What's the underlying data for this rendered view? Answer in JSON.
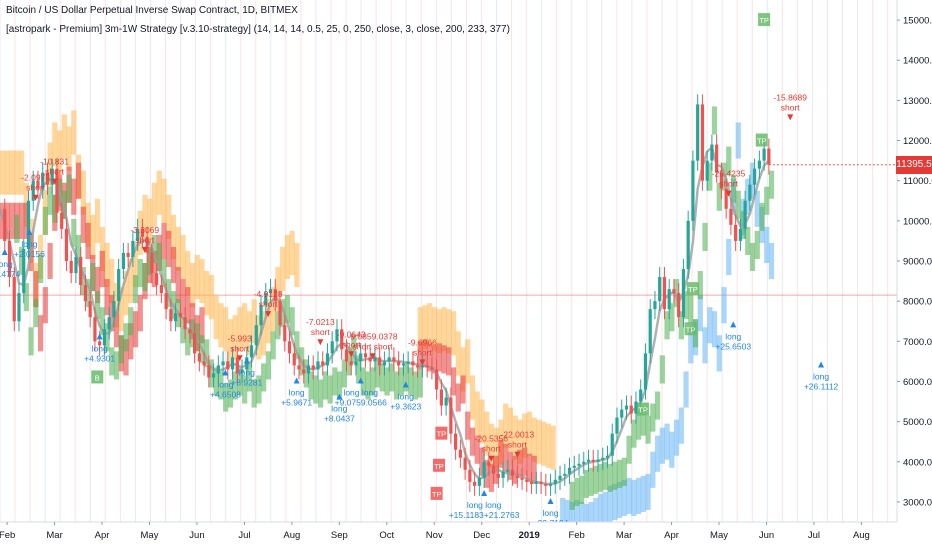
{
  "chart_data": {
    "type": "line",
    "title": "Bitcoin / US Dollar Perpetual Inverse Swap Contract, 1D, BITMEX",
    "subtitle": "[astropark - Premium] 3m-1W Strategy [v.3.10-strategy] (14, 14, 14, 0.5, 25, 0, 250, close, 3, close, 200, 233, 377)",
    "last_price_label": "11395.5",
    "last_price": 11395.5,
    "ref_line": 8150,
    "ylim": [
      2500,
      15500
    ],
    "y_ticks": [
      "3000.0",
      "4000.0",
      "5000.0",
      "6000.0",
      "7000.0",
      "8000.0",
      "9000.0",
      "10000.0",
      "11000.0",
      "12000.0",
      "13000.0",
      "14000.0",
      "15000.0"
    ],
    "x_ticks": [
      "Feb",
      "Mar",
      "Apr",
      "May",
      "Jun",
      "Jul",
      "Aug",
      "Sep",
      "Oct",
      "Nov",
      "Dec",
      "2019",
      "Feb",
      "Mar",
      "Apr",
      "May",
      "Jun",
      "Jul",
      "Aug"
    ],
    "x_months": [
      0,
      1,
      2,
      3,
      4,
      5,
      6,
      7,
      8,
      9,
      10,
      11,
      12,
      13,
      14,
      15,
      16,
      17,
      18
    ],
    "xlim": [
      0,
      18.9
    ],
    "colors": {
      "price_up": "#26a69a",
      "price_down": "#ef5350",
      "bull_band": "#4caf50",
      "bear_band": "#e53935",
      "orange_band": "#ffb74d",
      "blue_band": "#64b5f6",
      "ma_line": "#9e9e9e",
      "short_marker": "#e53935",
      "long_marker": "#1e88e5",
      "tp_box": "#66bb6a",
      "tp_box_red": "#ef5350",
      "ref_line": "#ef5350"
    },
    "series": [
      {
        "values": [
          [
            0,
            10300
          ],
          [
            0.1,
            9500
          ],
          [
            0.2,
            8600
          ],
          [
            0.3,
            7500
          ],
          [
            0.4,
            8200
          ],
          [
            0.5,
            9300
          ],
          [
            0.6,
            10500
          ],
          [
            0.7,
            11000
          ],
          [
            0.8,
            10800
          ],
          [
            0.9,
            11200
          ],
          [
            1.0,
            10900
          ],
          [
            1.1,
            11300
          ],
          [
            1.2,
            10200
          ],
          [
            1.3,
            9800
          ],
          [
            1.4,
            9000
          ],
          [
            1.5,
            8700
          ],
          [
            1.6,
            9100
          ],
          [
            1.7,
            8400
          ],
          [
            1.8,
            8000
          ],
          [
            1.9,
            7600
          ],
          [
            2.0,
            7000
          ],
          [
            2.1,
            6900
          ],
          [
            2.2,
            7300
          ],
          [
            2.3,
            7600
          ],
          [
            2.4,
            8000
          ],
          [
            2.5,
            8800
          ],
          [
            2.6,
            9200
          ],
          [
            2.7,
            9100
          ],
          [
            2.8,
            9500
          ],
          [
            2.9,
            9800
          ],
          [
            3.0,
            9600
          ],
          [
            3.1,
            9200
          ],
          [
            3.2,
            8700
          ],
          [
            3.3,
            8400
          ],
          [
            3.4,
            8200
          ],
          [
            3.5,
            7800
          ],
          [
            3.6,
            7500
          ],
          [
            3.7,
            7700
          ],
          [
            3.8,
            7600
          ],
          [
            3.9,
            7300
          ],
          [
            4.0,
            7200
          ],
          [
            4.1,
            6700
          ],
          [
            4.2,
            6500
          ],
          [
            4.3,
            6400
          ],
          [
            4.4,
            6100
          ],
          [
            4.5,
            6200
          ],
          [
            4.6,
            6400
          ],
          [
            4.7,
            6500
          ],
          [
            4.8,
            6300
          ],
          [
            4.9,
            6600
          ],
          [
            5.0,
            6200
          ],
          [
            5.1,
            6300
          ],
          [
            5.2,
            6600
          ],
          [
            5.3,
            6900
          ],
          [
            5.4,
            7400
          ],
          [
            5.5,
            7900
          ],
          [
            5.6,
            8200
          ],
          [
            5.7,
            8300
          ],
          [
            5.8,
            8000
          ],
          [
            5.9,
            7400
          ],
          [
            6.0,
            7000
          ],
          [
            6.1,
            6700
          ],
          [
            6.2,
            6400
          ],
          [
            6.3,
            6300
          ],
          [
            6.4,
            6200
          ],
          [
            6.5,
            6400
          ],
          [
            6.6,
            6300
          ],
          [
            6.7,
            6500
          ],
          [
            6.8,
            6400
          ],
          [
            6.9,
            6700
          ],
          [
            7.0,
            7000
          ],
          [
            7.1,
            7300
          ],
          [
            7.2,
            6800
          ],
          [
            7.3,
            6500
          ],
          [
            7.4,
            6400
          ],
          [
            7.5,
            6500
          ],
          [
            7.6,
            6700
          ],
          [
            7.7,
            6600
          ],
          [
            7.8,
            6500
          ],
          [
            7.9,
            6600
          ],
          [
            8.0,
            6400
          ],
          [
            8.1,
            6500
          ],
          [
            8.2,
            6600
          ],
          [
            8.3,
            6500
          ],
          [
            8.4,
            6400
          ],
          [
            8.5,
            6450
          ],
          [
            8.6,
            6500
          ],
          [
            8.7,
            6400
          ],
          [
            8.8,
            6350
          ],
          [
            8.9,
            6400
          ],
          [
            9.0,
            6350
          ],
          [
            9.1,
            6300
          ],
          [
            9.2,
            5800
          ],
          [
            9.3,
            5400
          ],
          [
            9.4,
            5600
          ],
          [
            9.5,
            4700
          ],
          [
            9.6,
            4300
          ],
          [
            9.7,
            4100
          ],
          [
            9.8,
            3800
          ],
          [
            9.9,
            3500
          ],
          [
            10.0,
            3400
          ],
          [
            10.1,
            3600
          ],
          [
            10.2,
            4000
          ],
          [
            10.3,
            3900
          ],
          [
            10.4,
            3700
          ],
          [
            10.5,
            3600
          ],
          [
            10.6,
            3750
          ],
          [
            10.7,
            3800
          ],
          [
            10.8,
            3650
          ],
          [
            10.9,
            3600
          ],
          [
            11.0,
            3550
          ],
          [
            11.1,
            3500
          ],
          [
            11.2,
            3450
          ],
          [
            11.3,
            3500
          ],
          [
            11.4,
            3450
          ],
          [
            11.5,
            3400
          ],
          [
            11.6,
            3450
          ],
          [
            11.7,
            3550
          ],
          [
            11.8,
            3650
          ],
          [
            11.9,
            3700
          ],
          [
            12.0,
            3850
          ],
          [
            12.1,
            3900
          ],
          [
            12.2,
            3950
          ],
          [
            12.3,
            4000
          ],
          [
            12.4,
            4050
          ],
          [
            12.5,
            4000
          ],
          [
            12.6,
            4050
          ],
          [
            12.7,
            4100
          ],
          [
            12.8,
            4150
          ],
          [
            12.9,
            4700
          ],
          [
            13.0,
            5100
          ],
          [
            13.1,
            5300
          ],
          [
            13.2,
            5400
          ],
          [
            13.3,
            5200
          ],
          [
            13.4,
            5500
          ],
          [
            13.5,
            5800
          ],
          [
            13.6,
            6700
          ],
          [
            13.7,
            7800
          ],
          [
            13.8,
            8000
          ],
          [
            13.9,
            8600
          ],
          [
            14.0,
            7800
          ],
          [
            14.1,
            8300
          ],
          [
            14.2,
            8200
          ],
          [
            14.3,
            7600
          ],
          [
            14.4,
            8800
          ],
          [
            14.5,
            10000
          ],
          [
            14.6,
            11500
          ],
          [
            14.7,
            12900
          ],
          [
            14.8,
            11000
          ],
          [
            14.9,
            11500
          ],
          [
            15.0,
            11900
          ],
          [
            15.1,
            11200
          ],
          [
            15.2,
            10800
          ],
          [
            15.3,
            10300
          ],
          [
            15.4,
            9900
          ],
          [
            15.5,
            9500
          ],
          [
            15.6,
            9800
          ],
          [
            15.7,
            10500
          ],
          [
            15.8,
            10900
          ],
          [
            15.9,
            11300
          ],
          [
            16.0,
            11500
          ],
          [
            16.1,
            11800
          ],
          [
            16.2,
            11400
          ]
        ]
      }
    ],
    "annotations": [
      {
        "label": "-2.0978",
        "sub": "short",
        "x": 0.75,
        "y": 11000,
        "kind": "short"
      },
      {
        "label": "-10.831",
        "sub": "short",
        "x": 1.15,
        "y": 11400,
        "kind": "short"
      },
      {
        "label": "+2.0156",
        "sub": "long",
        "x": 0.62,
        "y": 9200,
        "kind": "long"
      },
      {
        "label": "+4.4774",
        "sub": "long",
        "x": 0.1,
        "y": 8700,
        "kind": "long"
      },
      {
        "label": "-3.3069",
        "sub": "short",
        "x": 3.05,
        "y": 9700,
        "kind": "short"
      },
      {
        "label": "+4.9301",
        "sub": "long",
        "x": 2.1,
        "y": 6600,
        "kind": "long"
      },
      {
        "label": "-5.993",
        "sub": "short",
        "x": 5.05,
        "y": 7000,
        "kind": "short"
      },
      {
        "label": "-4.9128",
        "sub": "short",
        "x": 5.65,
        "y": 8100,
        "kind": "short"
      },
      {
        "label": "+4.6508",
        "sub": "long",
        "x": 4.75,
        "y": 5700,
        "kind": "long"
      },
      {
        "label": "+8.9281",
        "sub": "long",
        "x": 5.2,
        "y": 6000,
        "kind": "long"
      },
      {
        "label": "-7.0213",
        "sub": "short",
        "x": 6.75,
        "y": 7400,
        "kind": "short"
      },
      {
        "label": "+5.9671",
        "sub": "long",
        "x": 6.25,
        "y": 5500,
        "kind": "long"
      },
      {
        "label": "-9.0643",
        "sub": "short",
        "x": 7.4,
        "y": 7100,
        "kind": "short"
      },
      {
        "label": "-9.0859.0378",
        "sub": "short short",
        "x": 7.85,
        "y": 7050,
        "kind": "short"
      },
      {
        "label": "+8.0437",
        "sub": "long",
        "x": 7.15,
        "y": 5100,
        "kind": "long"
      },
      {
        "label": "+9.0759.0566",
        "sub": "long long",
        "x": 7.6,
        "y": 5500,
        "kind": "long"
      },
      {
        "label": "-9.6966",
        "sub": "short",
        "x": 8.9,
        "y": 6900,
        "kind": "short"
      },
      {
        "label": "+9.3623",
        "sub": "long",
        "x": 8.55,
        "y": 5400,
        "kind": "long"
      },
      {
        "label": "-20.5356",
        "sub": "short",
        "x": 10.35,
        "y": 4500,
        "kind": "short"
      },
      {
        "label": "-22.0013",
        "sub": "short",
        "x": 10.9,
        "y": 4600,
        "kind": "short"
      },
      {
        "label": "+15.1183+21.2763",
        "sub": "long long",
        "x": 10.2,
        "y": 2700,
        "kind": "long"
      },
      {
        "label": "+23.7124",
        "sub": "long",
        "x": 11.6,
        "y": 2500,
        "kind": "long"
      },
      {
        "label": "-25.4235",
        "sub": "short",
        "x": 15.35,
        "y": 11100,
        "kind": "short"
      },
      {
        "label": "+25.6503",
        "sub": "long",
        "x": 15.45,
        "y": 6900,
        "kind": "long"
      },
      {
        "label": "-15.8689",
        "sub": "short",
        "x": 16.65,
        "y": 13000,
        "kind": "short"
      },
      {
        "label": "+26.1112",
        "sub": "long",
        "x": 17.3,
        "y": 5900,
        "kind": "long"
      }
    ],
    "tp_markers": [
      {
        "label": "B",
        "x": 2.05,
        "y": 6100,
        "kind": "green"
      },
      {
        "label": "TP",
        "x": 9.3,
        "y": 4700,
        "kind": "red"
      },
      {
        "label": "TP",
        "x": 9.25,
        "y": 3900,
        "kind": "red"
      },
      {
        "label": "TP",
        "x": 9.2,
        "y": 3200,
        "kind": "red"
      },
      {
        "label": "TP",
        "x": 13.55,
        "y": 5300,
        "kind": "green"
      },
      {
        "label": "TP",
        "x": 14.55,
        "y": 7300,
        "kind": "green"
      },
      {
        "label": "TP",
        "x": 14.6,
        "y": 8300,
        "kind": "green"
      },
      {
        "label": "TP",
        "x": 16.1,
        "y": 15000,
        "kind": "green"
      },
      {
        "label": "TP",
        "x": 16.05,
        "y": 12000,
        "kind": "green"
      }
    ]
  }
}
